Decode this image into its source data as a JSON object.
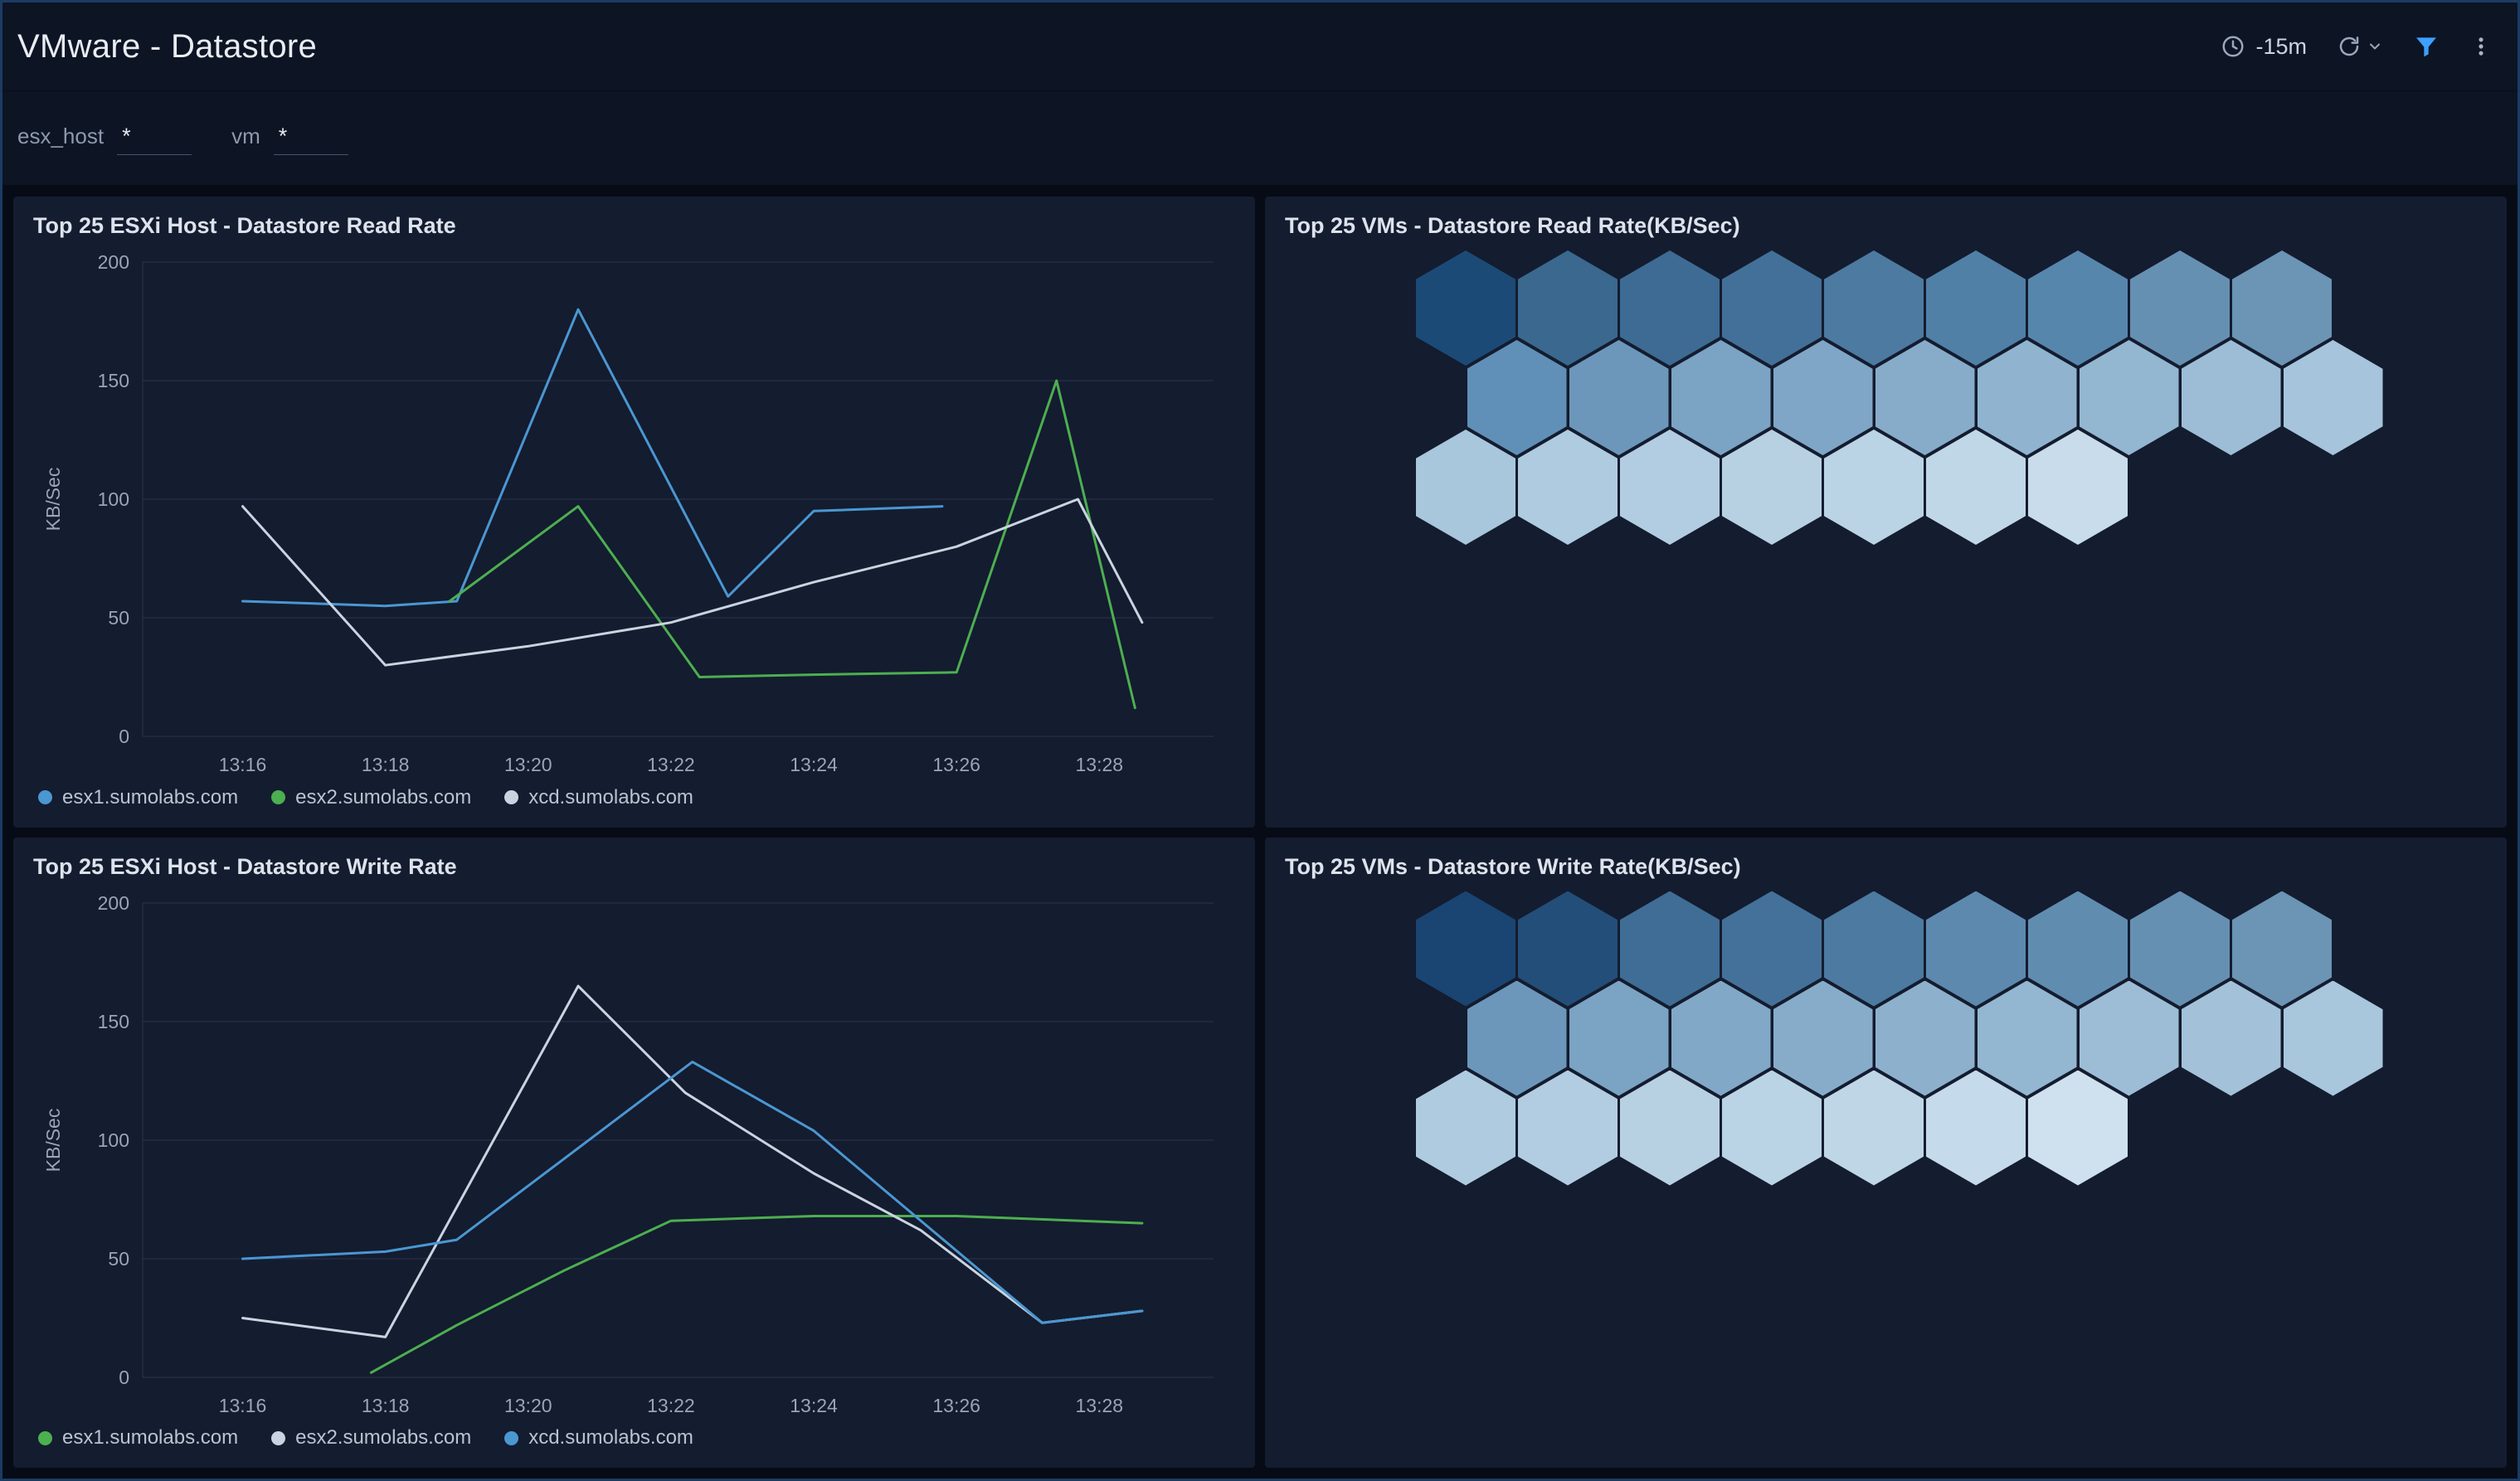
{
  "header": {
    "title": "VMware - Datastore",
    "time_range": "-15m"
  },
  "filters": [
    {
      "label": "esx_host",
      "value": "*"
    },
    {
      "label": "vm",
      "value": "*"
    }
  ],
  "colors": {
    "filter_accent": "#3da0ff",
    "grid_line": "#2b3452",
    "axis_text": "#9aa5b6",
    "panel_bg": "#141c2f"
  },
  "chart_data": [
    {
      "type": "line",
      "title": "Top 25 ESXi Host - Datastore Read Rate",
      "ylabel": "KB/Sec",
      "xlabel": "",
      "ylim": [
        0,
        200
      ],
      "y_ticks": [
        0,
        50,
        100,
        150,
        200
      ],
      "xlim": [
        14.6,
        29.6
      ],
      "x_unit": "minutes after 13:00",
      "grid": "horizontal",
      "legend_position": "bottom",
      "x_ticks": [
        {
          "v": 16,
          "label": "13:16"
        },
        {
          "v": 18,
          "label": "13:18"
        },
        {
          "v": 20,
          "label": "13:20"
        },
        {
          "v": 22,
          "label": "13:22"
        },
        {
          "v": 24,
          "label": "13:24"
        },
        {
          "v": 26,
          "label": "13:26"
        },
        {
          "v": 28,
          "label": "13:28"
        }
      ],
      "series": [
        {
          "name": "esx1.sumolabs.com",
          "color": "#4a97d2",
          "points": [
            [
              16,
              57
            ],
            [
              17,
              56
            ],
            [
              18,
              55
            ],
            [
              19,
              57
            ],
            [
              20.7,
              180
            ],
            [
              22.8,
              59
            ],
            [
              24,
              95
            ],
            [
              25.8,
              97
            ]
          ]
        },
        {
          "name": "esx2.sumolabs.com",
          "color": "#4caf50",
          "points": [
            [
              18.9,
              57
            ],
            [
              20.7,
              97
            ],
            [
              22.4,
              25
            ],
            [
              24,
              26
            ],
            [
              26,
              27
            ],
            [
              27.4,
              150
            ],
            [
              28.5,
              12
            ]
          ]
        },
        {
          "name": "xcd.sumolabs.com",
          "color": "#c9d4e0",
          "points": [
            [
              16,
              97
            ],
            [
              18,
              30
            ],
            [
              20,
              38
            ],
            [
              22,
              48
            ],
            [
              24,
              65
            ],
            [
              26,
              80
            ],
            [
              27.7,
              100
            ],
            [
              28.6,
              48
            ]
          ]
        }
      ]
    },
    {
      "type": "heatmap",
      "layout": "honeycomb",
      "title": "Top 25 VMs - Datastore Read Rate(KB/Sec)",
      "cell_count": 25,
      "rows": [
        {
          "offset": 0,
          "colors": [
            "#1c4a77",
            "#3a688f",
            "#3d6b93",
            "#437098",
            "#4d7aa0",
            "#5080a6",
            "#5786ac",
            "#6690b2",
            "#6b94b5"
          ]
        },
        {
          "offset": 0.5,
          "colors": [
            "#6090b7",
            "#6c97ba",
            "#7ba3c4",
            "#7fa6c6",
            "#87acc9",
            "#90b4cf",
            "#93b6d1",
            "#9dbdd6",
            "#a6c4db"
          ]
        },
        {
          "offset": 0,
          "colors": [
            "#a8c6dc",
            "#afcbdf",
            "#b2cde1",
            "#b7d1e3",
            "#bad3e5",
            "#c0d7e8",
            "#c8dceb"
          ]
        }
      ]
    },
    {
      "type": "line",
      "title": "Top 25 ESXi Host - Datastore Write Rate",
      "ylabel": "KB/Sec",
      "xlabel": "",
      "ylim": [
        0,
        200
      ],
      "y_ticks": [
        0,
        50,
        100,
        150,
        200
      ],
      "xlim": [
        14.6,
        29.6
      ],
      "x_unit": "minutes after 13:00",
      "grid": "horizontal",
      "legend_position": "bottom",
      "x_ticks": [
        {
          "v": 16,
          "label": "13:16"
        },
        {
          "v": 18,
          "label": "13:18"
        },
        {
          "v": 20,
          "label": "13:20"
        },
        {
          "v": 22,
          "label": "13:22"
        },
        {
          "v": 24,
          "label": "13:24"
        },
        {
          "v": 26,
          "label": "13:26"
        },
        {
          "v": 28,
          "label": "13:28"
        }
      ],
      "series": [
        {
          "name": "esx1.sumolabs.com",
          "color": "#4caf50",
          "points": [
            [
              17.8,
              2
            ],
            [
              19,
              22
            ],
            [
              20.5,
              45
            ],
            [
              22,
              66
            ],
            [
              24,
              68
            ],
            [
              26,
              68
            ],
            [
              28.6,
              65
            ]
          ]
        },
        {
          "name": "esx2.sumolabs.com",
          "color": "#c9d4e0",
          "points": [
            [
              16,
              25
            ],
            [
              18,
              17
            ],
            [
              20.7,
              165
            ],
            [
              22.2,
              120
            ],
            [
              24,
              86
            ],
            [
              25.5,
              62
            ],
            [
              27.2,
              23
            ],
            [
              28.6,
              28
            ]
          ]
        },
        {
          "name": "xcd.sumolabs.com",
          "color": "#4a97d2",
          "points": [
            [
              16,
              50
            ],
            [
              18,
              53
            ],
            [
              19,
              58
            ],
            [
              22.3,
              133
            ],
            [
              24,
              104
            ],
            [
              27.2,
              23
            ],
            [
              28.6,
              28
            ]
          ]
        }
      ]
    },
    {
      "type": "heatmap",
      "layout": "honeycomb",
      "title": "Top 25 VMs - Datastore Write Rate(KB/Sec)",
      "cell_count": 25,
      "rows": [
        {
          "offset": 0,
          "colors": [
            "#1a4471",
            "#224e79",
            "#3f6d95",
            "#44719a",
            "#4d7aa0",
            "#5d89ae",
            "#608cb0",
            "#6690b2",
            "#6b94b5"
          ]
        },
        {
          "offset": 0.5,
          "colors": [
            "#6c97ba",
            "#7ba3c4",
            "#82a8c7",
            "#87acc9",
            "#8db1cd",
            "#93b6d1",
            "#9dbdd6",
            "#a3c2d9",
            "#a8c6dc"
          ]
        },
        {
          "offset": 0,
          "colors": [
            "#afcbdf",
            "#b2cde1",
            "#b7d1e3",
            "#bad3e5",
            "#bfd6e7",
            "#c5daea",
            "#cfe0ee"
          ]
        }
      ]
    }
  ]
}
